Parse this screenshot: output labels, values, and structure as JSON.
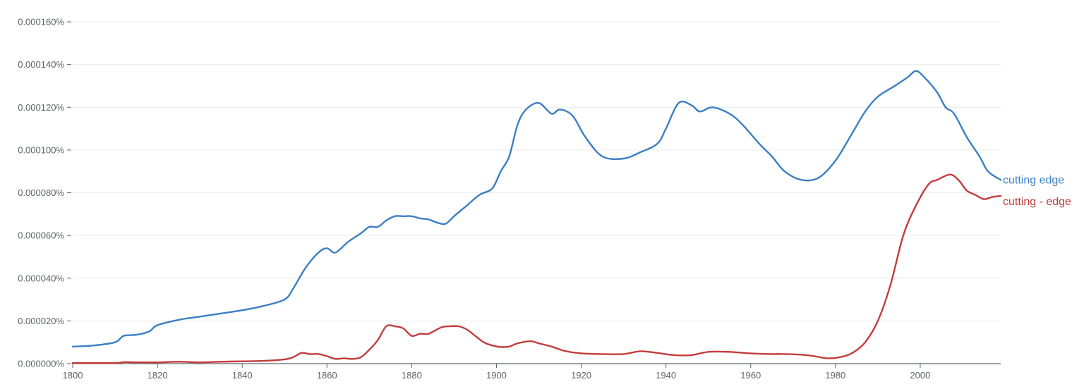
{
  "chart_data": {
    "type": "line",
    "title": "",
    "xlabel": "",
    "ylabel": "",
    "xlim": [
      1800,
      2019
    ],
    "ylim": [
      0,
      0.00016
    ],
    "grid": true,
    "legend": "right",
    "x_ticks": [
      {
        "value": 1800,
        "label": "1800"
      },
      {
        "value": 1820,
        "label": "1820"
      },
      {
        "value": 1840,
        "label": "1840"
      },
      {
        "value": 1860,
        "label": "1860"
      },
      {
        "value": 1880,
        "label": "1880"
      },
      {
        "value": 1900,
        "label": "1900"
      },
      {
        "value": 1920,
        "label": "1920"
      },
      {
        "value": 1940,
        "label": "1940"
      },
      {
        "value": 1960,
        "label": "1960"
      },
      {
        "value": 1980,
        "label": "1980"
      },
      {
        "value": 2000,
        "label": "2000"
      }
    ],
    "y_ticks": [
      {
        "value": 0,
        "label": "0.000000%"
      },
      {
        "value": 2e-05,
        "label": "0.000020%"
      },
      {
        "value": 4e-05,
        "label": "0.000040%"
      },
      {
        "value": 6e-05,
        "label": "0.000060%"
      },
      {
        "value": 8e-05,
        "label": "0.000080%"
      },
      {
        "value": 0.0001,
        "label": "0.000100%"
      },
      {
        "value": 0.00012,
        "label": "0.000120%"
      },
      {
        "value": 0.00014,
        "label": "0.000140%"
      },
      {
        "value": 0.00016,
        "label": "0.000160%"
      }
    ],
    "series": [
      {
        "name": "cutting edge",
        "color": "#3b7fc4",
        "points": [
          [
            1800,
            8e-06
          ],
          [
            1805,
            8.5e-06
          ],
          [
            1810,
            1e-05
          ],
          [
            1812,
            1.3e-05
          ],
          [
            1815,
            1.35e-05
          ],
          [
            1818,
            1.5e-05
          ],
          [
            1820,
            1.8e-05
          ],
          [
            1825,
            2.05e-05
          ],
          [
            1830,
            2.2e-05
          ],
          [
            1835,
            2.35e-05
          ],
          [
            1840,
            2.5e-05
          ],
          [
            1845,
            2.7e-05
          ],
          [
            1850,
            3e-05
          ],
          [
            1852,
            3.5e-05
          ],
          [
            1855,
            4.5e-05
          ],
          [
            1858,
            5.2e-05
          ],
          [
            1860,
            5.4e-05
          ],
          [
            1862,
            5.2e-05
          ],
          [
            1865,
            5.7e-05
          ],
          [
            1868,
            6.1e-05
          ],
          [
            1870,
            6.4e-05
          ],
          [
            1872,
            6.4e-05
          ],
          [
            1874,
            6.7e-05
          ],
          [
            1876,
            6.9e-05
          ],
          [
            1878,
            6.9e-05
          ],
          [
            1880,
            6.9e-05
          ],
          [
            1882,
            6.8e-05
          ],
          [
            1884,
            6.75e-05
          ],
          [
            1886,
            6.6e-05
          ],
          [
            1888,
            6.55e-05
          ],
          [
            1890,
            6.9e-05
          ],
          [
            1893,
            7.4e-05
          ],
          [
            1896,
            7.9e-05
          ],
          [
            1899,
            8.2e-05
          ],
          [
            1901,
            9e-05
          ],
          [
            1903,
            9.7e-05
          ],
          [
            1905,
            0.000112
          ],
          [
            1907,
            0.000119
          ],
          [
            1910,
            0.000122
          ],
          [
            1913,
            0.000117
          ],
          [
            1915,
            0.000119
          ],
          [
            1918,
            0.000116
          ],
          [
            1921,
            0.000106
          ],
          [
            1925,
            9.7e-05
          ],
          [
            1930,
            9.6e-05
          ],
          [
            1934,
            9.9e-05
          ],
          [
            1938,
            0.000103
          ],
          [
            1940,
            0.00011
          ],
          [
            1943,
            0.000122
          ],
          [
            1946,
            0.000121
          ],
          [
            1948,
            0.000118
          ],
          [
            1951,
            0.00012
          ],
          [
            1955,
            0.000117
          ],
          [
            1958,
            0.000112
          ],
          [
            1962,
            0.000103
          ],
          [
            1965,
            9.7e-05
          ],
          [
            1968,
            9e-05
          ],
          [
            1972,
            8.6e-05
          ],
          [
            1976,
            8.7e-05
          ],
          [
            1980,
            9.5e-05
          ],
          [
            1984,
            0.000108
          ],
          [
            1987,
            0.000118
          ],
          [
            1990,
            0.000125
          ],
          [
            1994,
            0.00013
          ],
          [
            1997,
            0.000134
          ],
          [
            1999,
            0.000137
          ],
          [
            2001,
            0.000134
          ],
          [
            2004,
            0.000127
          ],
          [
            2006,
            0.00012
          ],
          [
            2008,
            0.000117
          ],
          [
            2011,
            0.000106
          ],
          [
            2014,
            9.7e-05
          ],
          [
            2016,
            9e-05
          ],
          [
            2019,
            8.6e-05
          ]
        ]
      },
      {
        "name": "cutting - edge",
        "color": "#c43c3c",
        "points": [
          [
            1800,
            3e-07
          ],
          [
            1810,
            3e-07
          ],
          [
            1812,
            7e-07
          ],
          [
            1815,
            6e-07
          ],
          [
            1820,
            6e-07
          ],
          [
            1825,
            9e-07
          ],
          [
            1830,
            6e-07
          ],
          [
            1835,
            9e-07
          ],
          [
            1840,
            1.1e-06
          ],
          [
            1845,
            1.3e-06
          ],
          [
            1850,
            2e-06
          ],
          [
            1852,
            3e-06
          ],
          [
            1854,
            5e-06
          ],
          [
            1856,
            4.5e-06
          ],
          [
            1858,
            4.5e-06
          ],
          [
            1860,
            3.5e-06
          ],
          [
            1862,
            2.2e-06
          ],
          [
            1864,
            2.5e-06
          ],
          [
            1866,
            2.2e-06
          ],
          [
            1868,
            3e-06
          ],
          [
            1870,
            6.5e-06
          ],
          [
            1872,
            1.1e-05
          ],
          [
            1874,
            1.75e-05
          ],
          [
            1876,
            1.75e-05
          ],
          [
            1878,
            1.65e-05
          ],
          [
            1880,
            1.3e-05
          ],
          [
            1882,
            1.4e-05
          ],
          [
            1884,
            1.4e-05
          ],
          [
            1887,
            1.7e-05
          ],
          [
            1889,
            1.75e-05
          ],
          [
            1891,
            1.75e-05
          ],
          [
            1893,
            1.6e-05
          ],
          [
            1895,
            1.3e-05
          ],
          [
            1897,
            1e-05
          ],
          [
            1899,
            8.5e-06
          ],
          [
            1901,
            7.8e-06
          ],
          [
            1903,
            8e-06
          ],
          [
            1905,
            9.5e-06
          ],
          [
            1908,
            1.05e-05
          ],
          [
            1910,
            9.5e-06
          ],
          [
            1913,
            8e-06
          ],
          [
            1916,
            6e-06
          ],
          [
            1920,
            4.8e-06
          ],
          [
            1925,
            4.5e-06
          ],
          [
            1930,
            4.5e-06
          ],
          [
            1934,
            5.8e-06
          ],
          [
            1938,
            5e-06
          ],
          [
            1942,
            4e-06
          ],
          [
            1946,
            4e-06
          ],
          [
            1950,
            5.5e-06
          ],
          [
            1955,
            5.5e-06
          ],
          [
            1960,
            4.8e-06
          ],
          [
            1965,
            4.5e-06
          ],
          [
            1968,
            4.5e-06
          ],
          [
            1972,
            4.2e-06
          ],
          [
            1975,
            3.5e-06
          ],
          [
            1978,
            2.5e-06
          ],
          [
            1981,
            3e-06
          ],
          [
            1984,
            5e-06
          ],
          [
            1987,
            1e-05
          ],
          [
            1990,
            2e-05
          ],
          [
            1993,
            3.7e-05
          ],
          [
            1996,
            6e-05
          ],
          [
            1999,
            7.4e-05
          ],
          [
            2002,
            8.4e-05
          ],
          [
            2004,
            8.6e-05
          ],
          [
            2007,
            8.85e-05
          ],
          [
            2009,
            8.6e-05
          ],
          [
            2011,
            8.1e-05
          ],
          [
            2013,
            7.9e-05
          ],
          [
            2015,
            7.7e-05
          ],
          [
            2017,
            7.8e-05
          ],
          [
            2019,
            7.85e-05
          ]
        ]
      }
    ]
  }
}
